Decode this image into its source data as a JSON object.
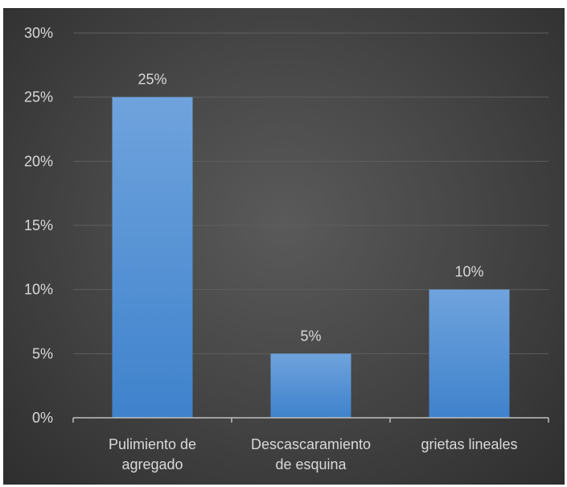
{
  "chart_data": {
    "type": "bar",
    "categories": [
      [
        "Pulimiento de",
        "agregado"
      ],
      [
        "Descascaramiento",
        "de esquina"
      ],
      [
        "grietas lineales"
      ]
    ],
    "values": [
      25,
      5,
      10
    ],
    "data_labels": [
      "25%",
      "5%",
      "10%"
    ],
    "y_ticks": [
      "0%",
      "5%",
      "10%",
      "15%",
      "20%",
      "25%",
      "30%"
    ],
    "ylim": [
      0,
      30
    ],
    "grid": true,
    "legend": "none",
    "colors": {
      "bar_top": "#6fa3dd",
      "bar_bottom": "#3f82cc",
      "gridline": "#5e5e5e",
      "axis": "#bfbfbf",
      "text": "#d9d9d9"
    }
  }
}
